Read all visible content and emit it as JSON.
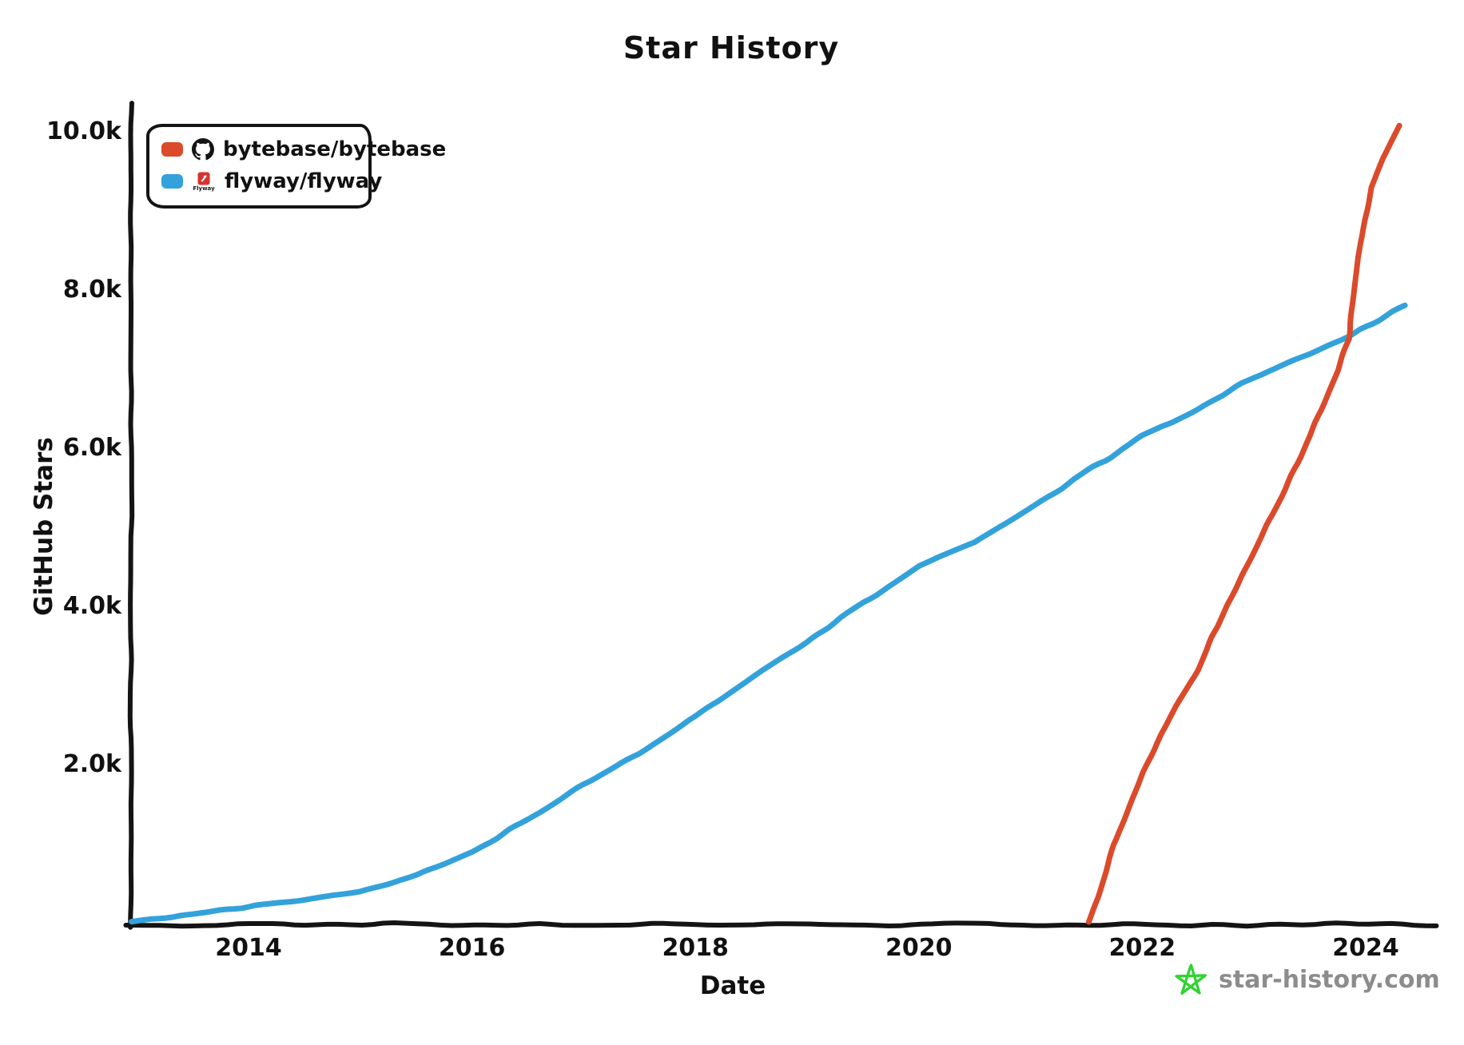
{
  "watermark": {
    "text": "star-history.com",
    "star_color": "#2fd330",
    "text_color": "#8c8c8c"
  },
  "axis_color": "#141414",
  "legend": {
    "items": [
      {
        "label": "bytebase/bytebase",
        "icon": "github-icon",
        "color": "#db4a2b"
      },
      {
        "label": "flyway/flyway",
        "icon": "flyway-icon",
        "color": "#33a2db",
        "logo_text": "Flyway"
      }
    ]
  },
  "chart_data": {
    "type": "line",
    "title": "Star History",
    "xlabel": "Date",
    "ylabel": "GitHub Stars",
    "xlim": [
      2012.95,
      2024.62
    ],
    "ylim": [
      0,
      10200
    ],
    "grid": false,
    "legend_position": "top-left",
    "xticks": [
      {
        "value": 2014,
        "label": "2014"
      },
      {
        "value": 2016,
        "label": "2016"
      },
      {
        "value": 2018,
        "label": "2018"
      },
      {
        "value": 2020,
        "label": "2020"
      },
      {
        "value": 2022,
        "label": "2022"
      },
      {
        "value": 2024,
        "label": "2024"
      }
    ],
    "yticks": [
      {
        "value": 2000,
        "label": "2.0k"
      },
      {
        "value": 4000,
        "label": "4.0k"
      },
      {
        "value": 6000,
        "label": "6.0k"
      },
      {
        "value": 8000,
        "label": "8.0k"
      },
      {
        "value": 10000,
        "label": "10.0k"
      }
    ],
    "series": [
      {
        "name": "flyway/flyway",
        "color": "#33a2db",
        "points": [
          [
            2012.95,
            20
          ],
          [
            2013.5,
            110
          ],
          [
            2014.0,
            200
          ],
          [
            2014.5,
            290
          ],
          [
            2015.0,
            400
          ],
          [
            2015.5,
            600
          ],
          [
            2016.0,
            900
          ],
          [
            2016.5,
            1300
          ],
          [
            2017.0,
            1750
          ],
          [
            2017.5,
            2150
          ],
          [
            2018.0,
            2600
          ],
          [
            2018.5,
            3100
          ],
          [
            2019.0,
            3550
          ],
          [
            2019.5,
            4050
          ],
          [
            2020.0,
            4500
          ],
          [
            2020.5,
            4800
          ],
          [
            2021.0,
            5250
          ],
          [
            2021.5,
            5700
          ],
          [
            2022.0,
            6150
          ],
          [
            2022.5,
            6500
          ],
          [
            2023.0,
            6900
          ],
          [
            2023.5,
            7200
          ],
          [
            2023.9,
            7450
          ],
          [
            2024.35,
            7800
          ]
        ]
      },
      {
        "name": "bytebase/bytebase",
        "color": "#db4a2b",
        "points": [
          [
            2021.52,
            0
          ],
          [
            2021.6,
            300
          ],
          [
            2021.75,
            1000
          ],
          [
            2022.0,
            1900
          ],
          [
            2022.25,
            2600
          ],
          [
            2022.5,
            3200
          ],
          [
            2022.75,
            4000
          ],
          [
            2023.0,
            4700
          ],
          [
            2023.25,
            5400
          ],
          [
            2023.5,
            6150
          ],
          [
            2023.75,
            7000
          ],
          [
            2023.85,
            7400
          ],
          [
            2023.95,
            8600
          ],
          [
            2024.05,
            9300
          ],
          [
            2024.15,
            9650
          ],
          [
            2024.3,
            10080
          ]
        ]
      }
    ]
  }
}
